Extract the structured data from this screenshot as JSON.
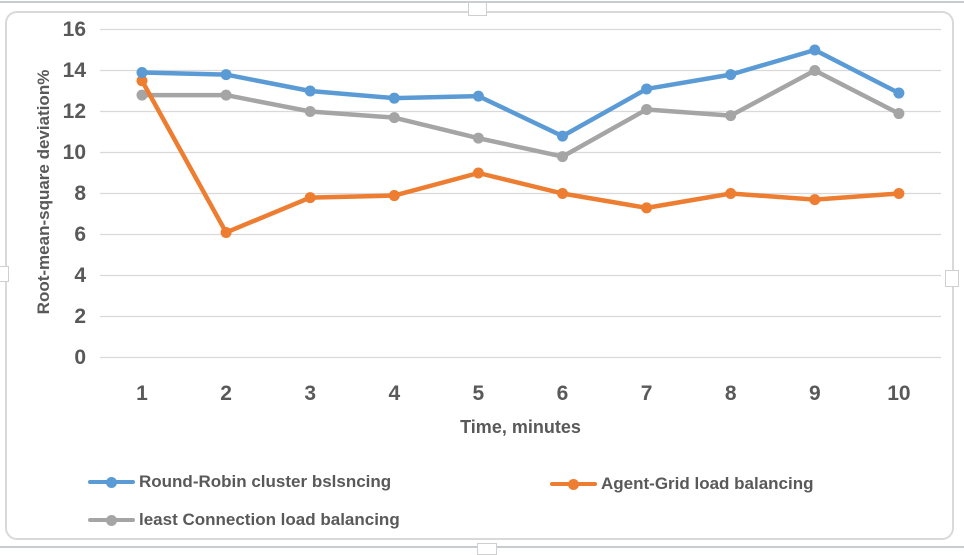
{
  "colors": {
    "text": "#595959",
    "gridline": "#d9d9d9",
    "frame_border": "#d9d9d9",
    "page_rule": "#c9cccf"
  },
  "chart_data": {
    "type": "line",
    "title": "",
    "xlabel": "Time, minutes",
    "ylabel": "Root-mean-square deviation%",
    "x": [
      "1",
      "2",
      "3",
      "4",
      "5",
      "6",
      "7",
      "8",
      "9",
      "10"
    ],
    "ylim": [
      0,
      16
    ],
    "yticks": [
      0,
      2,
      4,
      6,
      8,
      10,
      12,
      14,
      16
    ],
    "grid": true,
    "legend_position": "bottom",
    "series": [
      {
        "name": "Round-Robin cluster bslsncing",
        "color": "#5B9BD5",
        "marker": "circle",
        "values": [
          13.9,
          13.8,
          13.0,
          12.65,
          12.75,
          10.8,
          13.1,
          13.8,
          15.0,
          12.9
        ]
      },
      {
        "name": "Agent-Grid load balancing",
        "color": "#ED7D31",
        "marker": "circle",
        "values": [
          13.5,
          6.1,
          7.8,
          7.9,
          9.0,
          8.0,
          7.3,
          8.0,
          7.7,
          8.0
        ]
      },
      {
        "name": "least Connection load balancing",
        "color": "#A5A5A5",
        "marker": "circle",
        "values": [
          12.8,
          12.8,
          12.0,
          11.7,
          10.7,
          9.8,
          12.1,
          11.8,
          14.0,
          11.9
        ]
      }
    ]
  }
}
